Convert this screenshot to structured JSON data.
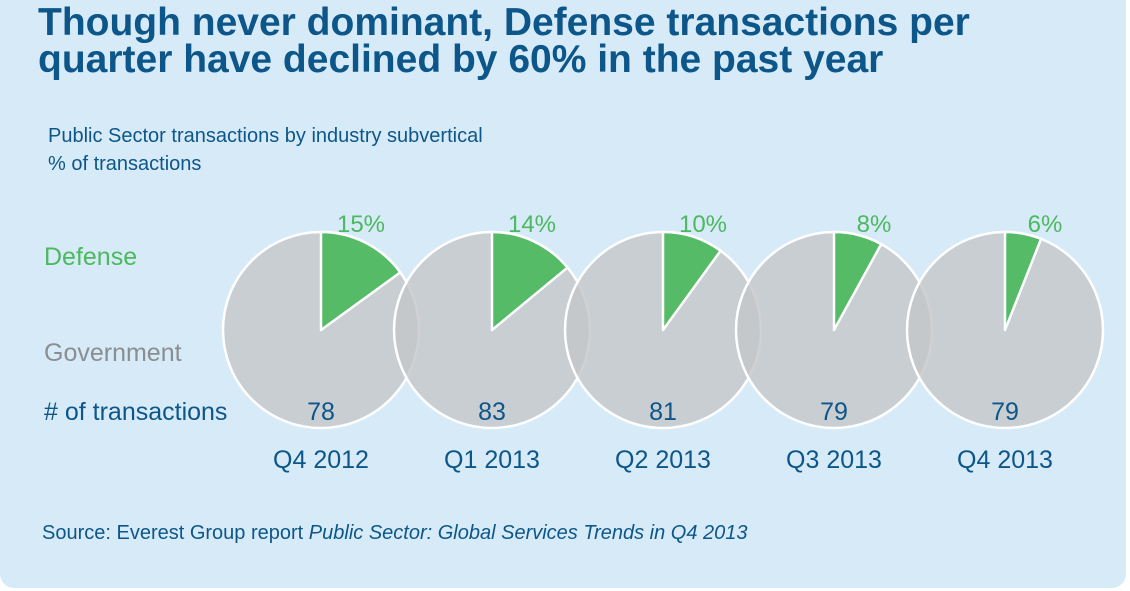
{
  "header": {
    "title_line1": "Though never dominant, Defense transactions per",
    "title_line2": "quarter have declined by 60% in the past year"
  },
  "subtitle": {
    "line1": "Public Sector transactions by industry subvertical",
    "line2": "% of transactions"
  },
  "row_labels": {
    "defense": "Defense",
    "government": "Government",
    "transactions": "# of transactions"
  },
  "source": {
    "prefix": "Source: Everest Group report ",
    "report": "Public Sector: Global Services Trends in Q4 2013"
  },
  "colors": {
    "defense": "#55bb66",
    "government": "#c4c7c9",
    "defense_label": "#4cb860",
    "government_label": "#8a8e92",
    "text_blue": "#0d5689"
  },
  "chart_data": {
    "type": "pie",
    "title": "Public Sector transactions by industry subvertical",
    "subtitle": "% of transactions",
    "categories": [
      "Q4 2012",
      "Q1 2013",
      "Q2 2013",
      "Q3 2013",
      "Q4 2013"
    ],
    "series": [
      {
        "name": "Defense",
        "values": [
          15,
          14,
          10,
          8,
          6
        ],
        "labels": [
          "15%",
          "14%",
          "10%",
          "8%",
          "6%"
        ]
      },
      {
        "name": "Government",
        "values": [
          85,
          86,
          90,
          92,
          94
        ]
      }
    ],
    "transactions": [
      78,
      83,
      81,
      79,
      79
    ]
  }
}
